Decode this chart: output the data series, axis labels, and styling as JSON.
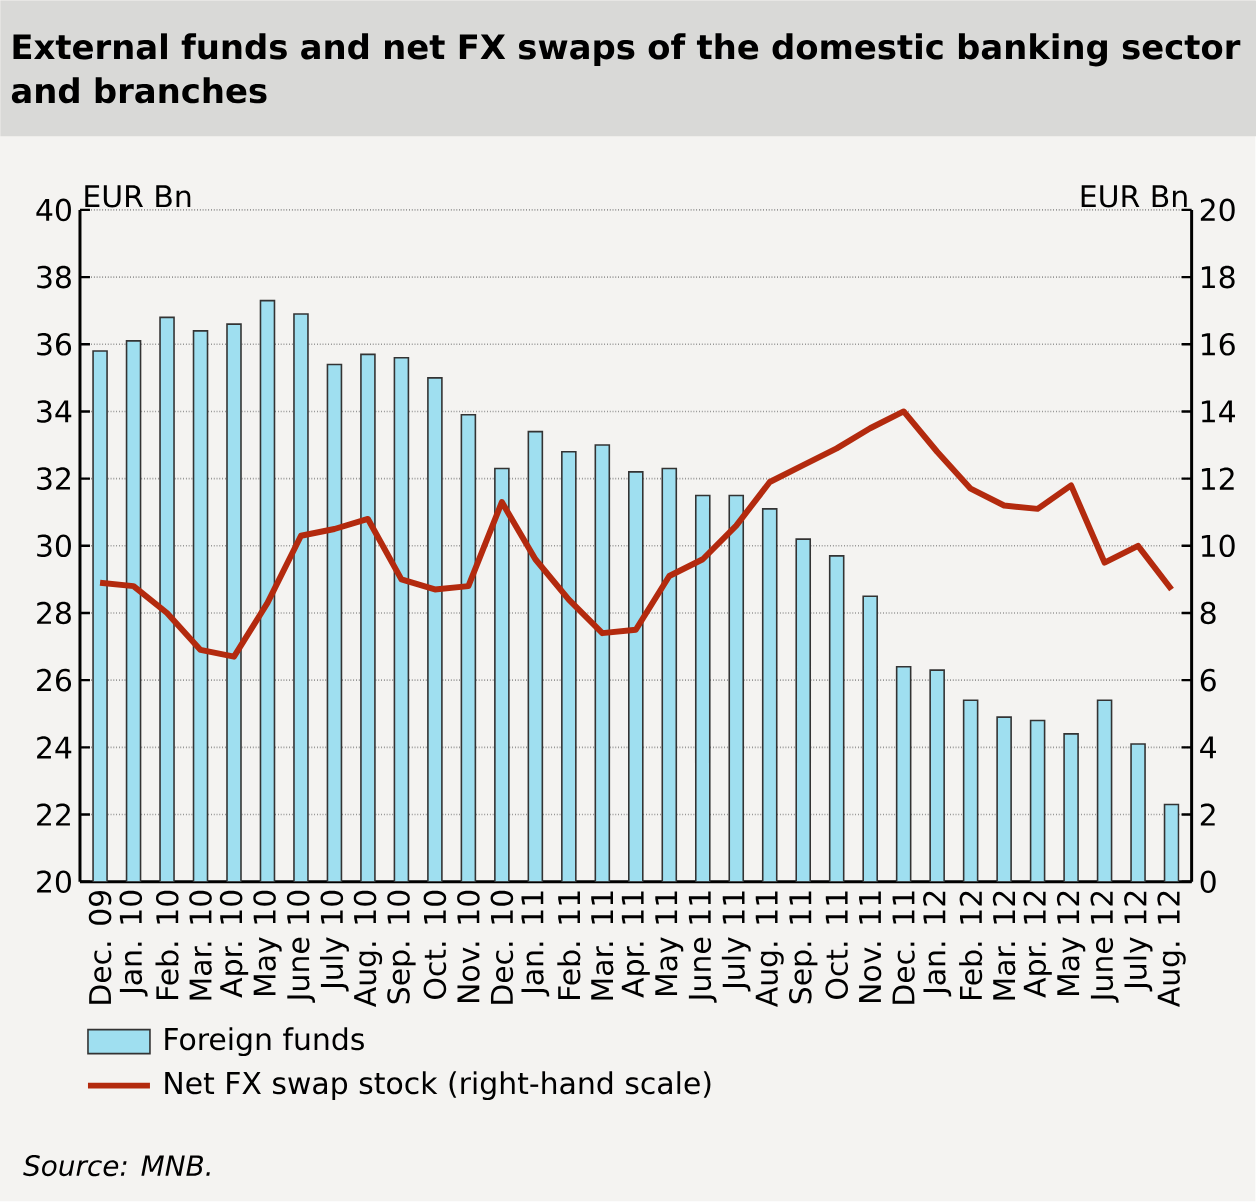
{
  "chart_data": {
    "type": "bar",
    "title": "External funds and net FX swaps of the domestic banking sector and branches",
    "ylabel": "EUR Bn",
    "y2label": "EUR Bn",
    "categories": [
      "Dec. 09",
      "Jan. 10",
      "Feb. 10",
      "Mar. 10",
      "Apr. 10",
      "May 10",
      "June 10",
      "July 10",
      "Aug. 10",
      "Sep. 10",
      "Oct. 10",
      "Nov. 10",
      "Dec. 10",
      "Jan. 11",
      "Feb. 11",
      "Mar. 11",
      "Apr. 11",
      "May 11",
      "June 11",
      "July 11",
      "Aug. 11",
      "Sep. 11",
      "Oct. 11",
      "Nov. 11",
      "Dec. 11",
      "Jan. 12",
      "Feb. 12",
      "Mar. 12",
      "Apr. 12",
      "May 12",
      "June 12",
      "July 12",
      "Aug. 12"
    ],
    "series": [
      {
        "name": "Foreign funds",
        "color": "#9fdff0",
        "values": [
          35.8,
          36.1,
          36.8,
          36.4,
          36.6,
          37.3,
          36.9,
          35.4,
          35.7,
          35.6,
          35.0,
          33.9,
          32.3,
          33.4,
          32.8,
          33.0,
          32.2,
          32.3,
          31.5,
          31.5,
          31.1,
          30.2,
          29.7,
          28.5,
          26.4,
          26.3,
          25.4,
          24.9,
          24.8,
          24.4,
          25.4,
          24.1,
          22.3
        ]
      },
      {
        "name": "Net FX swap stock (right-hand scale)",
        "type": "line",
        "axis": "y2",
        "color": "#b32a0e",
        "values": [
          8.9,
          8.8,
          8.0,
          6.9,
          6.7,
          8.3,
          10.3,
          10.5,
          10.8,
          9.0,
          8.7,
          8.8,
          11.3,
          9.6,
          8.4,
          7.4,
          7.5,
          9.1,
          9.6,
          10.6,
          11.9,
          12.4,
          12.9,
          13.5,
          14.0,
          12.8,
          11.7,
          11.2,
          11.1,
          11.8,
          9.5,
          10.0,
          8.7
        ]
      }
    ],
    "ylim": [
      20,
      40
    ],
    "yticks": [
      20,
      22,
      24,
      26,
      28,
      30,
      32,
      34,
      36,
      38,
      40
    ],
    "y2lim": [
      0,
      20
    ],
    "y2ticks": [
      0,
      2,
      4,
      6,
      8,
      10,
      12,
      14,
      16,
      18,
      20
    ],
    "grid": "y",
    "legend": "bottom",
    "annotations": [
      "Source: MNB."
    ]
  }
}
